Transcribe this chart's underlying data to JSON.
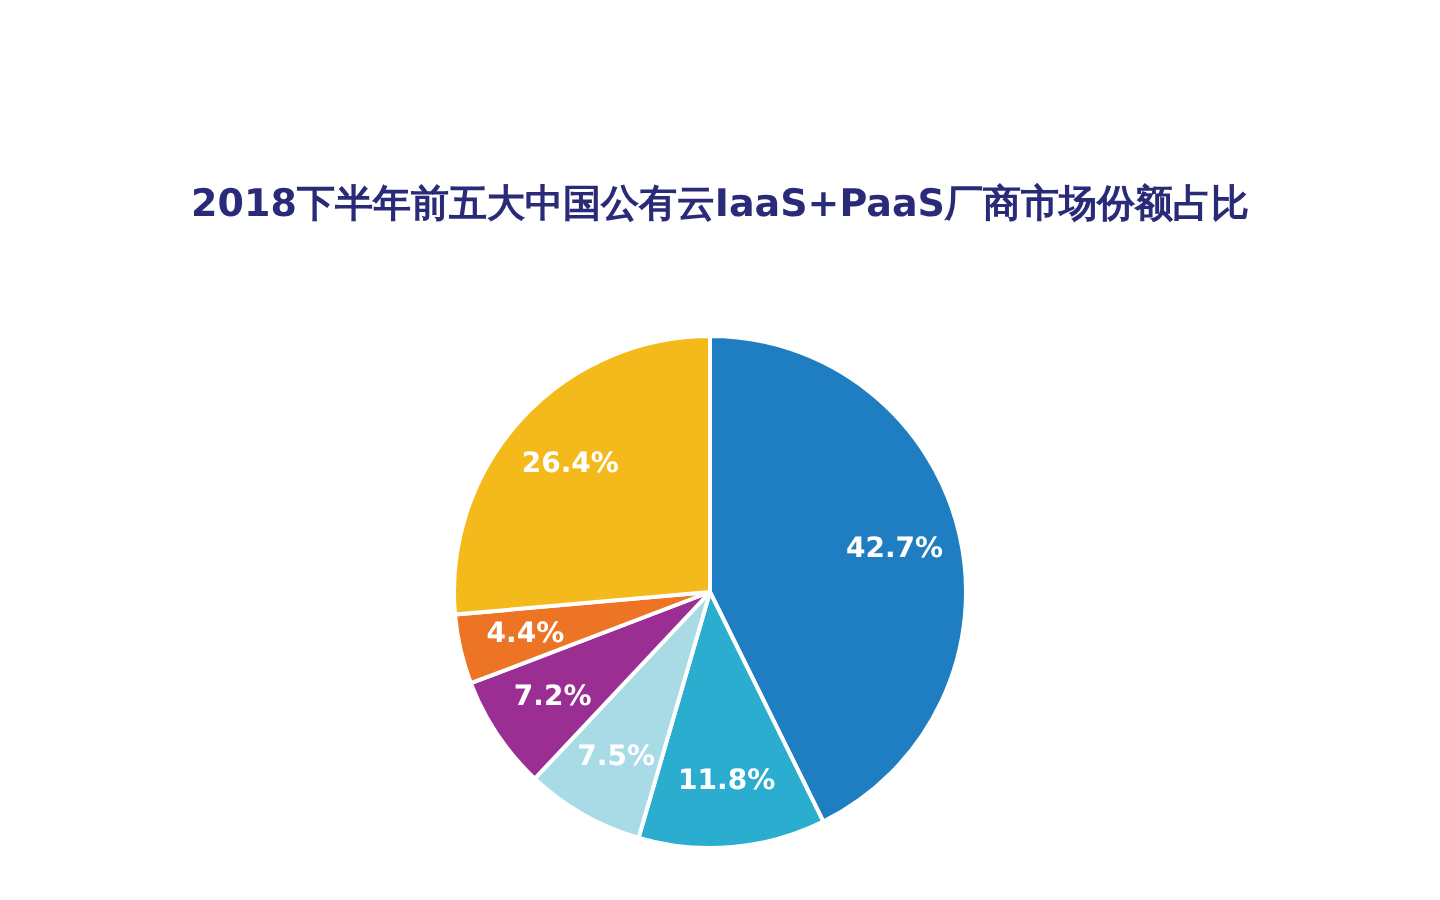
{
  "chart_data": {
    "type": "pie",
    "title": "2018下半年前五大中国公有云IaaS+PaaS厂商市场份额占比",
    "categories": [
      null,
      null,
      null,
      null,
      null,
      null
    ],
    "values": [
      42.7,
      11.8,
      7.5,
      7.2,
      4.4,
      26.4
    ],
    "colors": [
      "#1f7dc1",
      "#2badd0",
      "#a9dbe7",
      "#9a2e93",
      "#ec7424",
      "#f4ba1b"
    ],
    "value_labels": [
      "42.7%",
      "11.8%",
      "7.5%",
      "7.2%",
      "4.4%",
      "26.4%"
    ]
  }
}
